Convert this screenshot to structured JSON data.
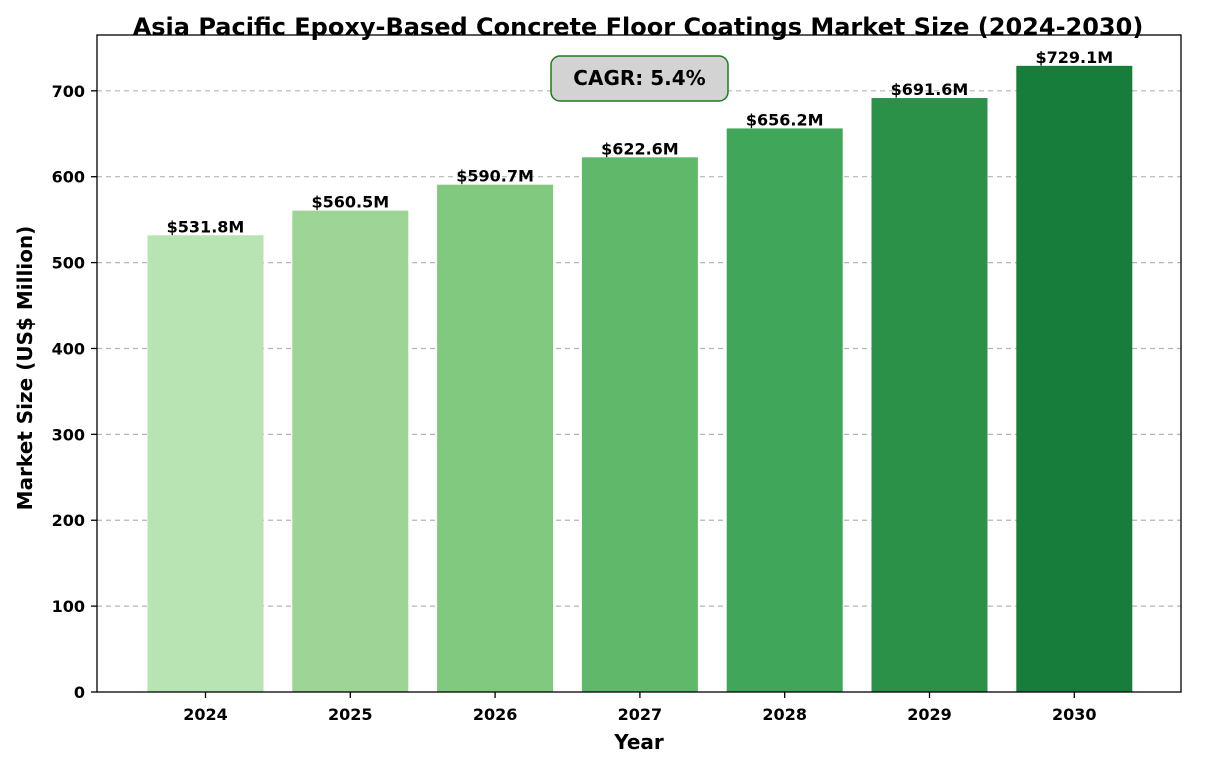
{
  "chart_data": {
    "type": "bar",
    "title": "Asia Pacific Epoxy-Based Concrete Floor Coatings Market Size (2024-2030)",
    "xlabel": "Year",
    "ylabel": "Market Size (US$ Million)",
    "categories": [
      "2024",
      "2025",
      "2026",
      "2027",
      "2028",
      "2029",
      "2030"
    ],
    "values": [
      531.8,
      560.5,
      590.7,
      622.6,
      656.2,
      691.6,
      729.1
    ],
    "value_labels": [
      "$531.8M",
      "$560.5M",
      "$590.7M",
      "$622.6M",
      "$656.2M",
      "$691.6M",
      "$729.1M"
    ],
    "bar_colors": [
      "#b8e3b2",
      "#9dd594",
      "#80c97e",
      "#60b96b",
      "#40a75a",
      "#2b9149",
      "#167e3a"
    ],
    "ylim": [
      0,
      765
    ],
    "yticks": [
      0,
      100,
      200,
      300,
      400,
      500,
      600,
      700
    ],
    "grid": "horizontal dashed",
    "annotation": {
      "text": "CAGR: 5.4%",
      "box_fill": "#d3d3d3",
      "box_edge": "#1d7a1d"
    }
  }
}
